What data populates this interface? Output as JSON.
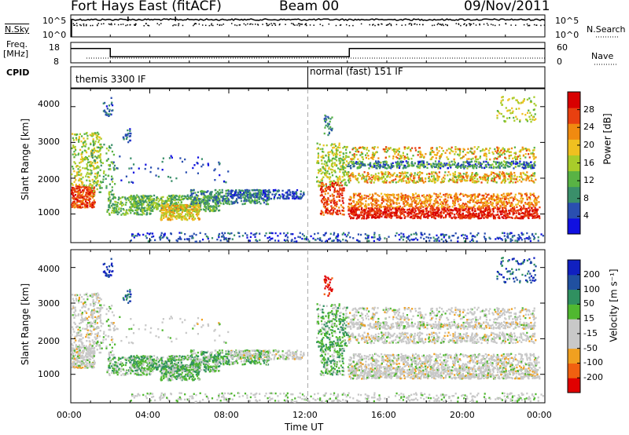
{
  "header": {
    "station": "Fort Hays East (fitACF)",
    "beam": "Beam 00",
    "date": "09/Nov/2011"
  },
  "side_labels": {
    "nsky": "N.Sky",
    "freq_line1": "Freq.",
    "freq_line2": "[MHz]",
    "cpid": "CPID",
    "nsearch": "N.Search",
    "nave": "Nave"
  },
  "cpid_labels": [
    "themis 3300 IF",
    "normal (fast) 151 IF"
  ],
  "colors": {
    "power": [
      "#1010e0",
      "#2a4fb0",
      "#3a8f6a",
      "#59b344",
      "#a8cc2a",
      "#f0c020",
      "#f08a10",
      "#e84010",
      "#d80000"
    ],
    "velocity": [
      "#e00000",
      "#f06010",
      "#f0a020",
      "#c8c8c8",
      "#c8c8c8",
      "#50b830",
      "#309060",
      "#2050a0",
      "#1020c0"
    ]
  },
  "chart_data": [
    {
      "type": "line",
      "name": "nsky-nsearch",
      "y_ticks_left": [
        "10^5",
        "10^0"
      ],
      "y_ticks_right": [
        "10^5",
        "10^0"
      ]
    },
    {
      "type": "line",
      "name": "freq-nave",
      "y_ticks_left": [
        "18",
        "8"
      ],
      "y_ticks_right": [
        "60",
        "0"
      ],
      "freq_steps": [
        {
          "t_start": 0.0,
          "t_end": 2.0,
          "freq": 15
        },
        {
          "t_start": 2.0,
          "t_end": 14.1,
          "freq": 11
        },
        {
          "t_start": 14.1,
          "t_end": 24.0,
          "freq": 15
        }
      ],
      "cpid_change_hour": 12.0
    },
    {
      "type": "heatmap",
      "name": "power",
      "ylabel": "Slant Range [km]",
      "y_ticks": [
        "4000",
        "3000",
        "2000",
        "1000"
      ],
      "colorbar_label": "Power [dB]",
      "colorbar_ticks": [
        "28",
        "24",
        "20",
        "16",
        "12",
        "8",
        "4"
      ],
      "xlim": [
        0,
        24
      ],
      "ylim": [
        200,
        4500
      ]
    },
    {
      "type": "heatmap",
      "name": "velocity",
      "ylabel": "Slant Range [km]",
      "y_ticks": [
        "4000",
        "3000",
        "2000",
        "1000"
      ],
      "colorbar_label": "Velocity [m s⁻¹]",
      "colorbar_ticks": [
        "200",
        "100",
        "50",
        "15",
        "-15",
        "-50",
        "-100",
        "-200"
      ],
      "xlabel": "Time UT",
      "x_ticks": [
        "00:00",
        "04:00",
        "08:00",
        "12:00",
        "16:00",
        "20:00",
        "00:00"
      ],
      "xlim": [
        0,
        24
      ],
      "ylim": [
        200,
        4500
      ]
    }
  ]
}
